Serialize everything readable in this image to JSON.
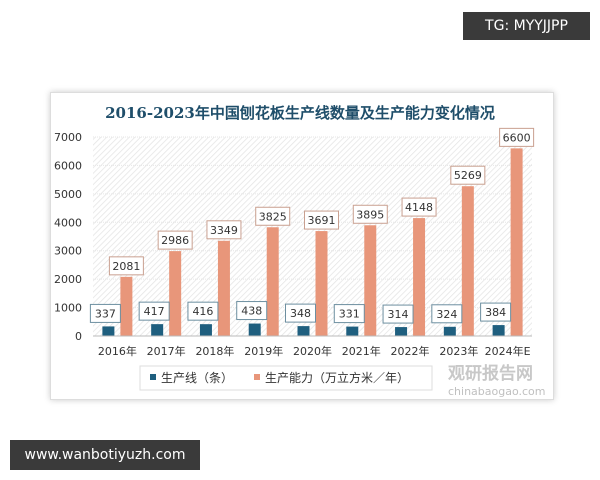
{
  "overlay": {
    "tg_label": "TG: MYYJJPP",
    "site_label": "www.wanbotiyuzh.com"
  },
  "watermark": {
    "cn": "观研报告网",
    "en": "chinabaogao.com"
  },
  "colors": {
    "lines": "#1f5f7f",
    "capacity": "#e8967a",
    "title": "#1f4e6a"
  },
  "chart_data": {
    "type": "bar",
    "title": "2016-2023年中国刨花板生产线数量及生产能力变化情况",
    "categories": [
      "2016年",
      "2017年",
      "2018年",
      "2019年",
      "2020年",
      "2021年",
      "2022年",
      "2023年",
      "2024年E"
    ],
    "series": [
      {
        "name": "生产线（条）",
        "values": [
          337,
          417,
          416,
          438,
          348,
          331,
          314,
          324,
          384
        ]
      },
      {
        "name": "生产能力（万立方米／年）",
        "values": [
          2081,
          2986,
          3349,
          3825,
          3691,
          3895,
          4148,
          5269,
          6600
        ]
      }
    ],
    "ylim": [
      0,
      7000
    ],
    "yticks": [
      "0",
      "1000",
      "2000",
      "3000",
      "4000",
      "5000",
      "6000",
      "7000"
    ],
    "grid": true,
    "legend": "bottom"
  }
}
